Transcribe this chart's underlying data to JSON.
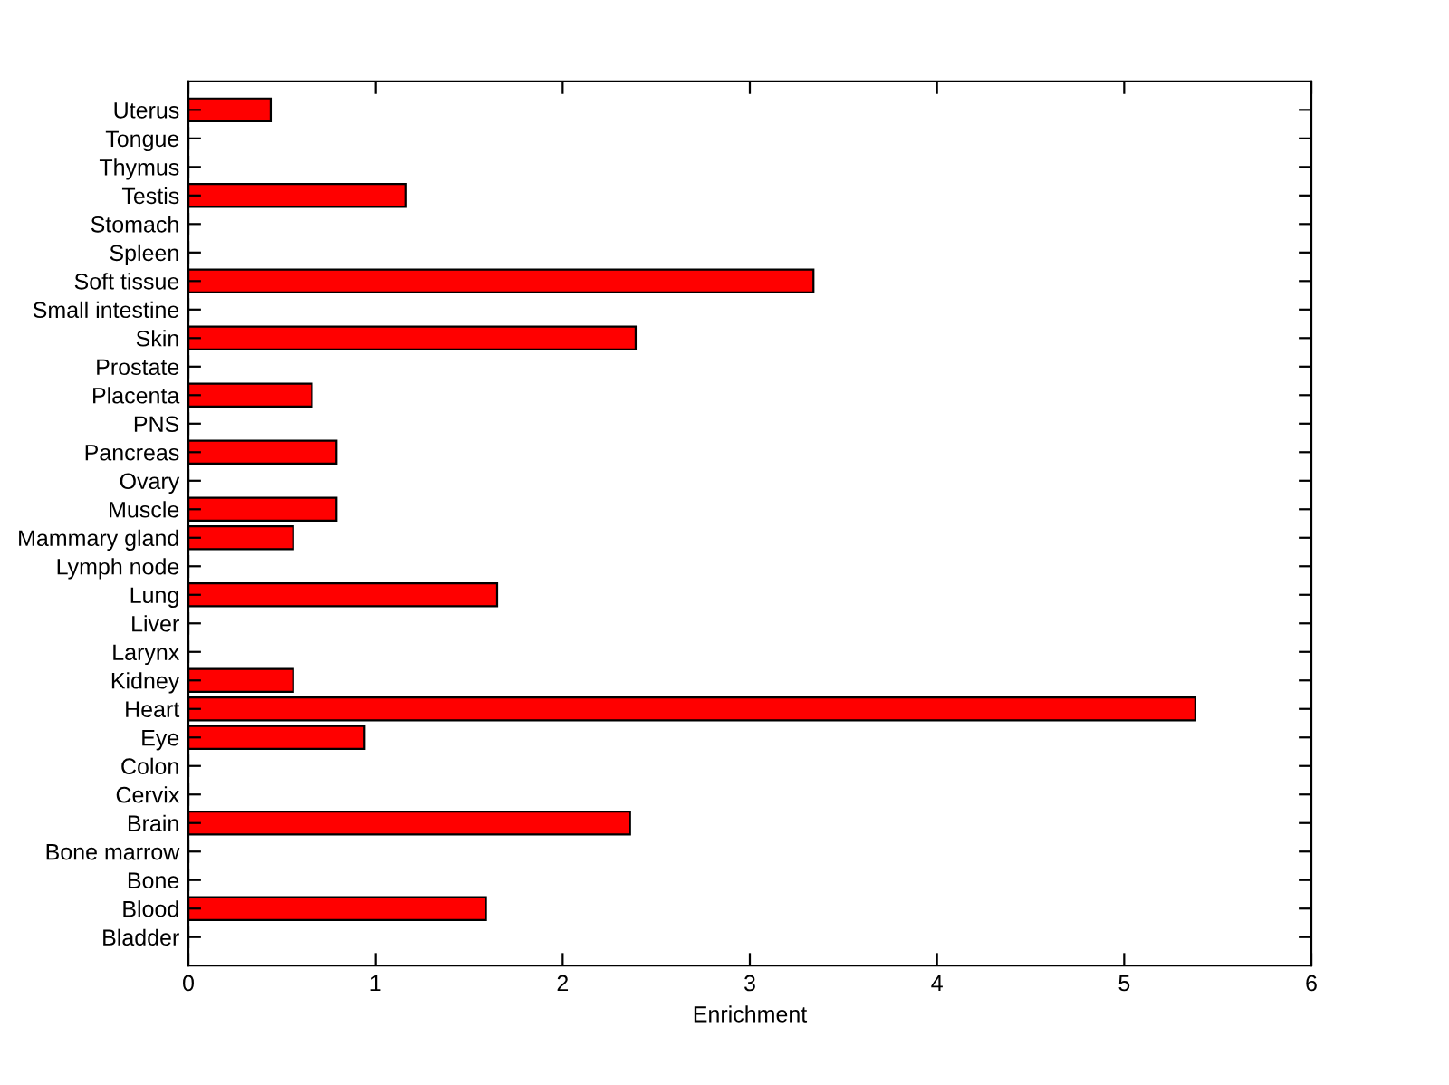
{
  "chart_data": {
    "type": "bar",
    "orientation": "horizontal",
    "xlabel": "Enrichment",
    "categories": [
      "Uterus",
      "Tongue",
      "Thymus",
      "Testis",
      "Stomach",
      "Spleen",
      "Soft tissue",
      "Small intestine",
      "Skin",
      "Prostate",
      "Placenta",
      "PNS",
      "Pancreas",
      "Ovary",
      "Muscle",
      "Mammary gland",
      "Lymph node",
      "Lung",
      "Liver",
      "Larynx",
      "Kidney",
      "Heart",
      "Eye",
      "Colon",
      "Cervix",
      "Brain",
      "Bone marrow",
      "Bone",
      "Blood",
      "Bladder"
    ],
    "values": [
      0.44,
      0,
      0,
      1.16,
      0,
      0,
      3.34,
      0,
      2.39,
      0,
      0.66,
      0,
      0.79,
      0,
      0.79,
      0.56,
      0,
      1.65,
      0,
      0,
      0.56,
      5.38,
      0.94,
      0,
      0,
      2.36,
      0,
      0,
      1.59,
      0
    ],
    "color": "#ff0000",
    "xlim": [
      0,
      6
    ],
    "xticks": [
      0,
      1,
      2,
      3,
      4,
      5,
      6
    ],
    "grid": false,
    "legend": false
  }
}
